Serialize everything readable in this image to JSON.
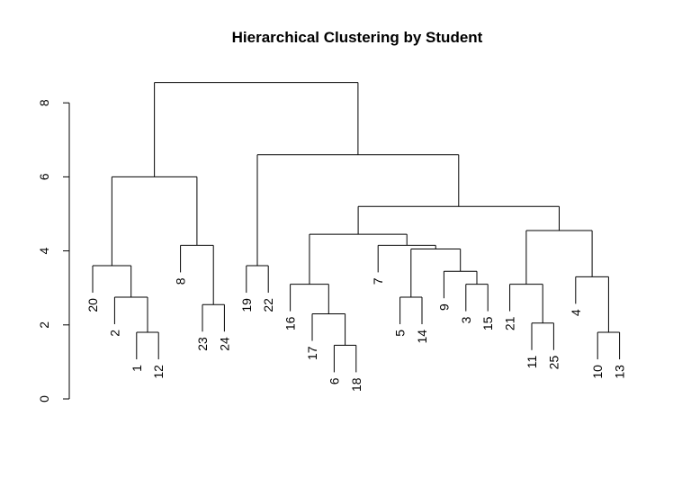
{
  "chart_data": {
    "type": "dendrogram",
    "title": "Hierarchical Clustering by Student",
    "xlabel": "",
    "ylabel": "",
    "ylim": [
      0,
      8.8
    ],
    "yticks": [
      0,
      2,
      4,
      6,
      8
    ],
    "grid": false,
    "leaf_order": [
      "20",
      "2",
      "1",
      "12",
      "8",
      "23",
      "24",
      "19",
      "22",
      "16",
      "17",
      "6",
      "18",
      "7",
      "5",
      "14",
      "9",
      "3",
      "15",
      "21",
      "11",
      "25",
      "4",
      "10",
      "13"
    ],
    "merges": [
      {
        "left": "1",
        "right": "12",
        "height": 1.8
      },
      {
        "left": "2",
        "right": "1+12",
        "height": 2.75
      },
      {
        "left": "20",
        "right": "2+1+12",
        "height": 3.6
      },
      {
        "left": "23",
        "right": "24",
        "height": 2.55
      },
      {
        "left": "8",
        "right": "23+24",
        "height": 4.15
      },
      {
        "left": "C20",
        "right": "C8",
        "height": 6.0
      },
      {
        "left": "19",
        "right": "22",
        "height": 3.6
      },
      {
        "left": "6",
        "right": "18",
        "height": 1.45
      },
      {
        "left": "17",
        "right": "6+18",
        "height": 2.3
      },
      {
        "left": "16",
        "right": "17+6+18",
        "height": 3.1
      },
      {
        "left": "5",
        "right": "14",
        "height": 2.75
      },
      {
        "left": "3",
        "right": "15",
        "height": 3.1
      },
      {
        "left": "9",
        "right": "3+15",
        "height": 3.45
      },
      {
        "left": "5+14",
        "right": "9+3+15",
        "height": 4.05
      },
      {
        "left": "7",
        "right": "5..15",
        "height": 4.15
      },
      {
        "left": "C16",
        "right": "C7",
        "height": 4.45
      },
      {
        "left": "11",
        "right": "25",
        "height": 2.05
      },
      {
        "left": "21",
        "right": "11+25",
        "height": 3.1
      },
      {
        "left": "10",
        "right": "13",
        "height": 1.8
      },
      {
        "left": "4",
        "right": "10+13",
        "height": 3.3
      },
      {
        "left": "C21",
        "right": "C4",
        "height": 4.55
      },
      {
        "left": "C16..15",
        "right": "C21..13",
        "height": 5.2
      },
      {
        "left": "C19",
        "right": "C16..13",
        "height": 6.6
      },
      {
        "left": "C20..24",
        "right": "C19..13",
        "height": 8.55
      }
    ]
  }
}
